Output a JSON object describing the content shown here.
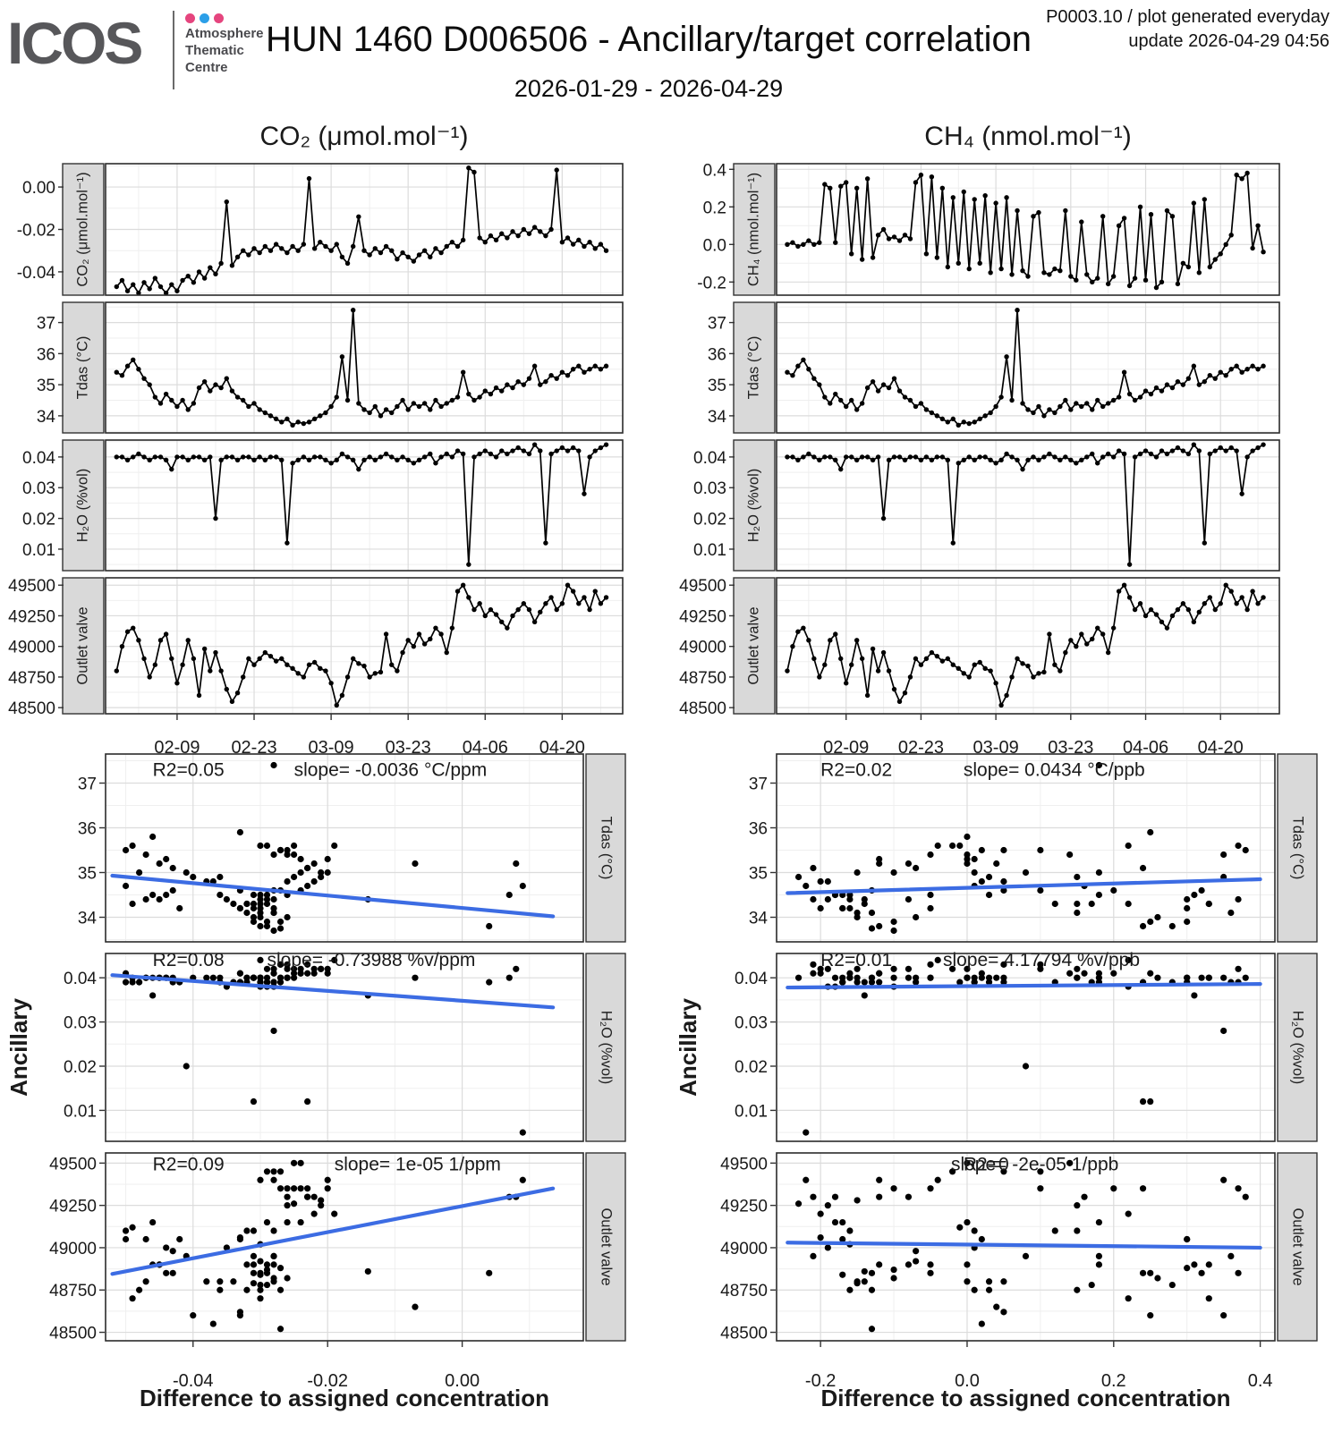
{
  "header": {
    "logo_text": "ICOS",
    "logo_sub_lines": "Atmosphere Thematic Centre",
    "logo_sub": [
      "Atmosphere",
      "Thematic",
      "Centre"
    ],
    "dot_colors": [
      "#e5457e",
      "#2b9fe8",
      "#e5457e"
    ],
    "title": "HUN 1460 D006506 - Ancillary/target correlation",
    "info_line1": "P0003.10 / plot generated everyday",
    "info_line2": "update  2026-04-29 04:56",
    "subtitle": "2026-01-29 - 2026-04-29"
  },
  "chart_data": {
    "type": "line",
    "description": "Two columns of stacked panels: time series (target gas difference, Tdas, H2O, Outlet valve) and scatter correlations of ancillary vs difference to assigned concentration",
    "time_axis": {
      "tick_labels": [
        "02-09",
        "02-23",
        "03-09",
        "03-23",
        "04-06",
        "04-20"
      ],
      "tick_days": [
        11,
        25,
        39,
        53,
        67,
        81
      ],
      "domain_days": [
        -2,
        92
      ]
    },
    "ancillary_rows": [
      {
        "key": "tdas",
        "strip": "Tdas (°C)",
        "ylim": [
          33.45,
          37.65
        ],
        "ticks": [
          34,
          35,
          36,
          37
        ],
        "labels": [
          "34",
          "35",
          "36",
          "37"
        ]
      },
      {
        "key": "h2o",
        "strip": "H₂O (%vol)",
        "ylim": [
          0.003,
          0.0455
        ],
        "ticks": [
          0.01,
          0.02,
          0.03,
          0.04
        ],
        "labels": [
          "0.01",
          "0.02",
          "0.03",
          "0.04"
        ]
      },
      {
        "key": "outlet",
        "strip": "Outlet valve",
        "ylim": [
          48450,
          49560
        ],
        "ticks": [
          48500,
          48750,
          49000,
          49250,
          49500
        ],
        "labels": [
          "48500",
          "48750",
          "49000",
          "49250",
          "49500"
        ]
      }
    ],
    "columns": [
      {
        "id": "co2",
        "title": "CO₂ (μmol.mol⁻¹)",
        "diff_key": "co2_diff",
        "diff_row": {
          "strip": "CO₂ (μmol.mol⁻¹)",
          "ylim": [
            -0.051,
            0.011
          ],
          "ticks": [
            -0.04,
            -0.02,
            0
          ],
          "labels": [
            "-0.04",
            "-0.02",
            "0.00"
          ]
        },
        "scatter_x": {
          "lim": [
            -0.053,
            0.018
          ],
          "ticks": [
            -0.04,
            -0.02,
            0
          ],
          "labels": [
            "-0.04",
            "-0.02",
            "0.00"
          ]
        },
        "panels": [
          {
            "row": "tdas",
            "r2": "R2=0.05",
            "slope": "slope= -0.0036 °C/ppm",
            "r2_x": -0.046,
            "slope_x": -0.025,
            "ann_y": 37.3,
            "fit": [
              [
                -0.052,
                34.93
              ],
              [
                0.0135,
                34.02
              ]
            ]
          },
          {
            "row": "h2o",
            "r2": "R2=0.08",
            "slope": "slope= -0.73988 %v/ppm",
            "r2_x": -0.046,
            "slope_x": -0.029,
            "ann_y": 0.0441,
            "fit": [
              [
                -0.052,
                0.0406
              ],
              [
                0.0135,
                0.0333
              ]
            ]
          },
          {
            "row": "outlet",
            "r2": "R2=0.09",
            "slope": "slope= 1e-05 1/ppm",
            "r2_x": -0.046,
            "slope_x": -0.019,
            "ann_y": 49495,
            "fit": [
              [
                -0.052,
                48845
              ],
              [
                0.0135,
                49350
              ]
            ]
          }
        ],
        "xlabel": "Difference to assigned concentration",
        "ylabel": "Ancillary"
      },
      {
        "id": "ch4",
        "title": "CH₄ (nmol.mol⁻¹)",
        "diff_key": "ch4_diff",
        "diff_row": {
          "strip": "CH₄ (nmol.mol⁻¹)",
          "ylim": [
            -0.27,
            0.43
          ],
          "ticks": [
            -0.2,
            0,
            0.2,
            0.4
          ],
          "labels": [
            "-0.2",
            "0.0",
            "0.2",
            "0.4"
          ]
        },
        "scatter_x": {
          "lim": [
            -0.26,
            0.42
          ],
          "ticks": [
            -0.2,
            0,
            0.2,
            0.4
          ],
          "labels": [
            "-0.2",
            "0.0",
            "0.2",
            "0.4"
          ]
        },
        "panels": [
          {
            "row": "tdas",
            "r2": "R2=0.02",
            "slope": "slope= 0.0434 °C/ppb",
            "r2_x": -0.2,
            "slope_x": -0.005,
            "ann_y": 37.3,
            "fit": [
              [
                -0.245,
                34.54
              ],
              [
                0.4,
                34.85
              ]
            ]
          },
          {
            "row": "h2o",
            "r2": "R2=0.01",
            "slope": "slope= 4.17794 %v/ppb",
            "r2_x": -0.2,
            "slope_x": -0.033,
            "ann_y": 0.0441,
            "fit": [
              [
                -0.245,
                0.0378
              ],
              [
                0.4,
                0.0386
              ]
            ]
          },
          {
            "row": "outlet",
            "r2": "R2=0",
            "slope": "slope= -2e-05 1/ppb",
            "r2_x": -0.005,
            "slope_x": -0.022,
            "ann_y": 49495,
            "fit": [
              [
                -0.245,
                49030
              ],
              [
                0.4,
                49000
              ]
            ]
          }
        ],
        "xlabel": "Difference to assigned concentration",
        "ylabel": "Ancillary"
      }
    ],
    "series": {
      "x_is_day_index_from": "2026-01-29",
      "co2_diff": [
        -0.047,
        -0.044,
        -0.049,
        -0.046,
        -0.05,
        -0.045,
        -0.048,
        -0.043,
        -0.047,
        -0.05,
        -0.046,
        -0.049,
        -0.044,
        -0.042,
        -0.045,
        -0.04,
        -0.043,
        -0.038,
        -0.041,
        -0.036,
        -0.007,
        -0.037,
        -0.033,
        -0.03,
        -0.032,
        -0.029,
        -0.031,
        -0.028,
        -0.03,
        -0.027,
        -0.029,
        -0.031,
        -0.028,
        -0.03,
        -0.027,
        0.004,
        -0.029,
        -0.026,
        -0.028,
        -0.03,
        -0.027,
        -0.033,
        -0.036,
        -0.028,
        -0.014,
        -0.03,
        -0.032,
        -0.029,
        -0.031,
        -0.028,
        -0.03,
        -0.034,
        -0.031,
        -0.033,
        -0.035,
        -0.032,
        -0.03,
        -0.033,
        -0.029,
        -0.031,
        -0.028,
        -0.026,
        -0.028,
        -0.025,
        0.009,
        0.007,
        -0.024,
        -0.026,
        -0.023,
        -0.025,
        -0.022,
        -0.024,
        -0.021,
        -0.023,
        -0.02,
        -0.022,
        -0.019,
        -0.021,
        -0.023,
        -0.02,
        0.008,
        -0.026,
        -0.024,
        -0.027,
        -0.025,
        -0.028,
        -0.026,
        -0.029,
        -0.027,
        -0.03
      ],
      "ch4_diff": [
        0,
        0.01,
        -0.01,
        0,
        0.02,
        0,
        0.01,
        0.32,
        0.3,
        0.01,
        0.31,
        0.33,
        -0.05,
        0.3,
        -0.08,
        0.35,
        -0.07,
        0.05,
        0.08,
        0.03,
        0.04,
        0.02,
        0.05,
        0.03,
        0.33,
        0.37,
        -0.05,
        0.36,
        -0.07,
        0.3,
        -0.12,
        0.25,
        -0.1,
        0.28,
        -0.13,
        0.24,
        -0.1,
        0.26,
        -0.15,
        0.22,
        -0.13,
        0.25,
        -0.16,
        0.18,
        -0.14,
        -0.17,
        0.15,
        0.17,
        -0.15,
        -0.16,
        -0.13,
        -0.14,
        0.18,
        -0.17,
        -0.19,
        0.12,
        -0.16,
        -0.2,
        -0.18,
        0.15,
        -0.21,
        -0.17,
        0.1,
        0.14,
        -0.22,
        -0.18,
        0.2,
        -0.19,
        0.16,
        -0.23,
        -0.2,
        0.18,
        0.15,
        -0.21,
        -0.1,
        -0.12,
        0.22,
        -0.15,
        0.24,
        -0.12,
        -0.08,
        -0.05,
        0,
        0.05,
        0.37,
        0.35,
        0.38,
        -0.02,
        0.1,
        -0.04
      ],
      "tdas": [
        35.4,
        35.3,
        35.6,
        35.8,
        35.5,
        35.2,
        35,
        34.6,
        34.4,
        34.7,
        34.5,
        34.3,
        34.5,
        34.2,
        34.4,
        34.9,
        35.1,
        34.8,
        35,
        34.9,
        35.2,
        34.8,
        34.6,
        34.5,
        34.3,
        34.4,
        34.2,
        34.1,
        34,
        33.9,
        33.8,
        33.9,
        33.7,
        33.8,
        33.75,
        33.8,
        33.9,
        34,
        34.1,
        34.3,
        34.6,
        35.9,
        34.5,
        37.4,
        34.4,
        34.2,
        34.1,
        34.3,
        34,
        34.2,
        34.1,
        34.3,
        34.5,
        34.2,
        34.4,
        34.3,
        34.4,
        34.2,
        34.5,
        34.3,
        34.4,
        34.5,
        34.6,
        35.4,
        34.7,
        34.5,
        34.6,
        34.8,
        34.7,
        34.9,
        34.8,
        35,
        34.9,
        35.1,
        35,
        35.2,
        35.6,
        35,
        35.1,
        35.3,
        35.2,
        35.4,
        35.3,
        35.5,
        35.6,
        35.4,
        35.5,
        35.6,
        35.5,
        35.6
      ],
      "h2o": [
        0.04,
        0.04,
        0.039,
        0.04,
        0.041,
        0.04,
        0.039,
        0.04,
        0.04,
        0.039,
        0.036,
        0.04,
        0.04,
        0.039,
        0.04,
        0.04,
        0.039,
        0.04,
        0.02,
        0.039,
        0.04,
        0.04,
        0.039,
        0.04,
        0.04,
        0.039,
        0.04,
        0.039,
        0.04,
        0.04,
        0.039,
        0.012,
        0.038,
        0.039,
        0.04,
        0.039,
        0.04,
        0.04,
        0.039,
        0.038,
        0.039,
        0.041,
        0.04,
        0.039,
        0.036,
        0.039,
        0.04,
        0.039,
        0.04,
        0.041,
        0.04,
        0.039,
        0.04,
        0.039,
        0.038,
        0.039,
        0.04,
        0.041,
        0.038,
        0.04,
        0.041,
        0.04,
        0.042,
        0.041,
        0.005,
        0.04,
        0.041,
        0.042,
        0.041,
        0.04,
        0.042,
        0.041,
        0.042,
        0.043,
        0.042,
        0.041,
        0.044,
        0.042,
        0.012,
        0.041,
        0.042,
        0.043,
        0.042,
        0.043,
        0.042,
        0.028,
        0.04,
        0.042,
        0.043,
        0.044
      ],
      "outlet": [
        48800,
        49000,
        49120,
        49150,
        49050,
        48900,
        48750,
        48850,
        49050,
        49100,
        48900,
        48700,
        48850,
        49050,
        48900,
        48600,
        48980,
        48800,
        48950,
        48800,
        48650,
        48550,
        48620,
        48750,
        48900,
        48850,
        48900,
        48950,
        48920,
        48880,
        48900,
        48850,
        48820,
        48780,
        48750,
        48850,
        48870,
        48820,
        48800,
        48700,
        48520,
        48600,
        48750,
        48900,
        48860,
        48840,
        48750,
        48780,
        48790,
        49100,
        48850,
        48800,
        48950,
        49050,
        49000,
        49100,
        49020,
        49060,
        49150,
        49100,
        48950,
        49150,
        49450,
        49500,
        49400,
        49300,
        49350,
        49250,
        49300,
        49260,
        49200,
        49150,
        49250,
        49300,
        49350,
        49300,
        49200,
        49280,
        49350,
        49400,
        49300,
        49350,
        49500,
        49450,
        49350,
        49400,
        49300,
        49450,
        49350,
        49400
      ]
    },
    "style": {
      "point_color": "#000000",
      "line_color": "#000000",
      "smooth_color": "#3c6ce3",
      "strip_fill": "#d9d9d9",
      "strip_border": "#333333",
      "grid_major": "#dcdcdc",
      "grid_minor": "#efefef",
      "panel_border": "#2b2b2b",
      "panel_bg": "#ffffff"
    }
  }
}
